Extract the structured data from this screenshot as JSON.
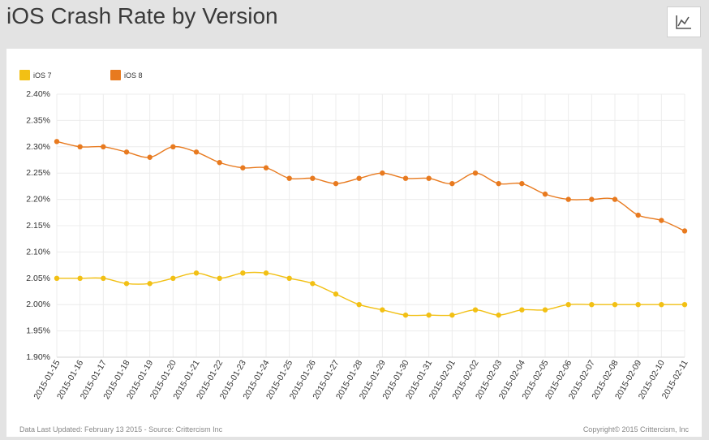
{
  "header": {
    "title": "iOS Crash Rate by Version",
    "toggle_icon": "line-chart-icon"
  },
  "footer": {
    "left": "Data Last Updated: February 13 2015 - Source: Crittercism Inc",
    "right": "Copyright© 2015 Crittercism, Inc"
  },
  "colors": {
    "ios7": "#f2c014",
    "ios8": "#e87a1f",
    "grid": "#ececec",
    "axis_text": "#333333"
  },
  "chart_data": {
    "type": "line",
    "title": "iOS Crash Rate by Version",
    "xlabel": "",
    "ylabel": "",
    "ylim": [
      1.9,
      2.4
    ],
    "yticks": [
      "1.90%",
      "1.95%",
      "2.00%",
      "2.05%",
      "2.10%",
      "2.15%",
      "2.20%",
      "2.25%",
      "2.30%",
      "2.35%",
      "2.40%"
    ],
    "grid": true,
    "legend": "top-left",
    "categories": [
      "2015-01-15",
      "2015-01-16",
      "2015-01-17",
      "2015-01-18",
      "2015-01-19",
      "2015-01-20",
      "2015-01-21",
      "2015-01-22",
      "2015-01-23",
      "2015-01-24",
      "2015-01-25",
      "2015-01-26",
      "2015-01-27",
      "2015-01-28",
      "2015-01-29",
      "2015-01-30",
      "2015-01-31",
      "2015-02-01",
      "2015-02-02",
      "2015-02-03",
      "2015-02-04",
      "2015-02-05",
      "2015-02-06",
      "2015-02-07",
      "2015-02-08",
      "2015-02-09",
      "2015-02-10",
      "2015-02-11"
    ],
    "series": [
      {
        "name": "iOS 7",
        "color": "#f2c014",
        "values": [
          2.05,
          2.05,
          2.05,
          2.04,
          2.04,
          2.05,
          2.06,
          2.05,
          2.06,
          2.06,
          2.05,
          2.04,
          2.02,
          2.0,
          1.99,
          1.98,
          1.98,
          1.98,
          1.99,
          1.98,
          1.99,
          1.99,
          2.0,
          2.0,
          2.0,
          2.0,
          2.0,
          2.0
        ]
      },
      {
        "name": "iOS 8",
        "color": "#e87a1f",
        "values": [
          2.31,
          2.3,
          2.3,
          2.29,
          2.28,
          2.3,
          2.29,
          2.27,
          2.26,
          2.26,
          2.24,
          2.24,
          2.23,
          2.24,
          2.25,
          2.24,
          2.24,
          2.23,
          2.25,
          2.23,
          2.23,
          2.21,
          2.2,
          2.2,
          2.2,
          2.17,
          2.16,
          2.14
        ]
      }
    ]
  }
}
